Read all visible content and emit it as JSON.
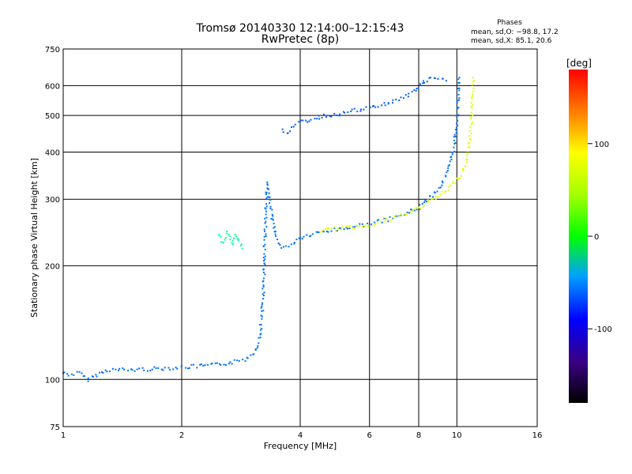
{
  "chart_data": {
    "type": "scatter",
    "title": "Tromsø 20140330 12:14:00–12:15:43",
    "subtitle": "RwPretec (8p)",
    "xlabel": "Frequency [MHz]",
    "ylabel": "Stationary phase Virtual Height [km]",
    "x_scale": "log",
    "y_scale": "log",
    "xlim": [
      1,
      16
    ],
    "ylim": [
      75,
      750
    ],
    "x_ticks": [
      1,
      2,
      4,
      6,
      8,
      10,
      16
    ],
    "y_ticks": [
      75,
      100,
      200,
      300,
      400,
      500,
      600,
      750
    ],
    "grid": true,
    "colorbar": {
      "label": "[deg]",
      "range": [
        -180,
        180
      ],
      "ticks": [
        -100,
        0,
        100
      ],
      "colormap": "rainbow"
    },
    "stats": {
      "title": "Phases",
      "line1": "mean, sd,O: −98.8, 17.2",
      "line2": "mean, sd,X:  85.1, 20.6"
    },
    "series": [
      {
        "role": "O-mode E/F1 trace",
        "phase_deg": -105,
        "points": [
          [
            1.0,
            104
          ],
          [
            1.05,
            103
          ],
          [
            1.1,
            104
          ],
          [
            1.15,
            100
          ],
          [
            1.3,
            106
          ],
          [
            1.5,
            106
          ],
          [
            1.8,
            107
          ],
          [
            2.1,
            108
          ],
          [
            2.4,
            109
          ],
          [
            2.7,
            111
          ],
          [
            2.9,
            113
          ],
          [
            3.05,
            118
          ],
          [
            3.12,
            124
          ],
          [
            3.17,
            133
          ],
          [
            3.2,
            150
          ],
          [
            3.23,
            175
          ],
          [
            3.25,
            230
          ],
          [
            3.28,
            290
          ],
          [
            3.3,
            330
          ],
          [
            3.35,
            300
          ],
          [
            3.4,
            265
          ],
          [
            3.5,
            235
          ],
          [
            3.6,
            222
          ],
          [
            3.8,
            228
          ],
          [
            4.0,
            237
          ],
          [
            4.5,
            245
          ],
          [
            5.0,
            250
          ],
          [
            6.0,
            258
          ],
          [
            7.0,
            268
          ],
          [
            8.0,
            285
          ],
          [
            9.0,
            320
          ],
          [
            9.5,
            355
          ],
          [
            9.8,
            400
          ],
          [
            10.0,
            480
          ],
          [
            10.1,
            560
          ],
          [
            10.15,
            630
          ]
        ]
      },
      {
        "role": "X-mode F trace",
        "phase_deg": 90,
        "points": [
          [
            4.5,
            248
          ],
          [
            5.5,
            253
          ],
          [
            6.5,
            262
          ],
          [
            7.5,
            275
          ],
          [
            8.5,
            295
          ],
          [
            9.5,
            318
          ],
          [
            10.2,
            345
          ],
          [
            10.6,
            380
          ],
          [
            10.8,
            430
          ],
          [
            10.9,
            490
          ],
          [
            10.95,
            560
          ],
          [
            11.0,
            630
          ]
        ]
      },
      {
        "role": "upper oblique echoes",
        "phase_deg": -110,
        "points": [
          [
            3.6,
            455
          ],
          [
            3.7,
            450
          ],
          [
            4.0,
            480
          ],
          [
            4.5,
            495
          ],
          [
            5.0,
            505
          ],
          [
            5.5,
            515
          ],
          [
            6.0,
            522
          ],
          [
            6.5,
            535
          ],
          [
            7.0,
            548
          ],
          [
            7.5,
            565
          ],
          [
            8.0,
            595
          ],
          [
            8.3,
            615
          ],
          [
            8.6,
            625
          ],
          [
            9.0,
            625
          ],
          [
            9.4,
            618
          ]
        ]
      },
      {
        "role": "sporadic patch",
        "phase_deg": -30,
        "points": [
          [
            2.5,
            240
          ],
          [
            2.55,
            230
          ],
          [
            2.6,
            245
          ],
          [
            2.65,
            235
          ],
          [
            2.7,
            228
          ],
          [
            2.75,
            240
          ],
          [
            2.8,
            232
          ],
          [
            2.85,
            222
          ]
        ]
      }
    ]
  }
}
